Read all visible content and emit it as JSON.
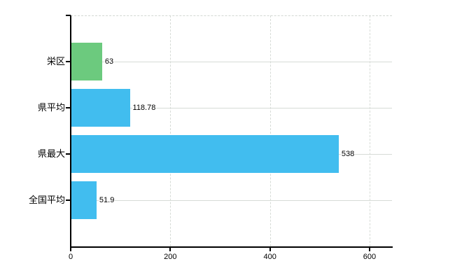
{
  "chart_data": {
    "type": "bar",
    "orientation": "horizontal",
    "title": "",
    "xlabel": "",
    "ylabel": "",
    "categories": [
      "栄区",
      "県平均",
      "県最大",
      "全国平均"
    ],
    "values": [
      63,
      118.78,
      538,
      51.9
    ],
    "value_labels": [
      "63",
      "118.78",
      "538",
      "51.9"
    ],
    "bar_colors": [
      "#6cca7e",
      "#41bdef",
      "#41bdef",
      "#41bdef"
    ],
    "x_tick_labels": [
      "0",
      "200",
      "400",
      "600"
    ],
    "x_tick_values": [
      0,
      200,
      400,
      600
    ],
    "x_max": 645,
    "grid": true,
    "legend_position": "none",
    "colors": {
      "bar_default": "#41bdef",
      "bar_highlight": "#6cca7e",
      "grid": "#d6dbd6",
      "axis": "#000000",
      "text": "#000000",
      "background": "#ffffff"
    }
  }
}
